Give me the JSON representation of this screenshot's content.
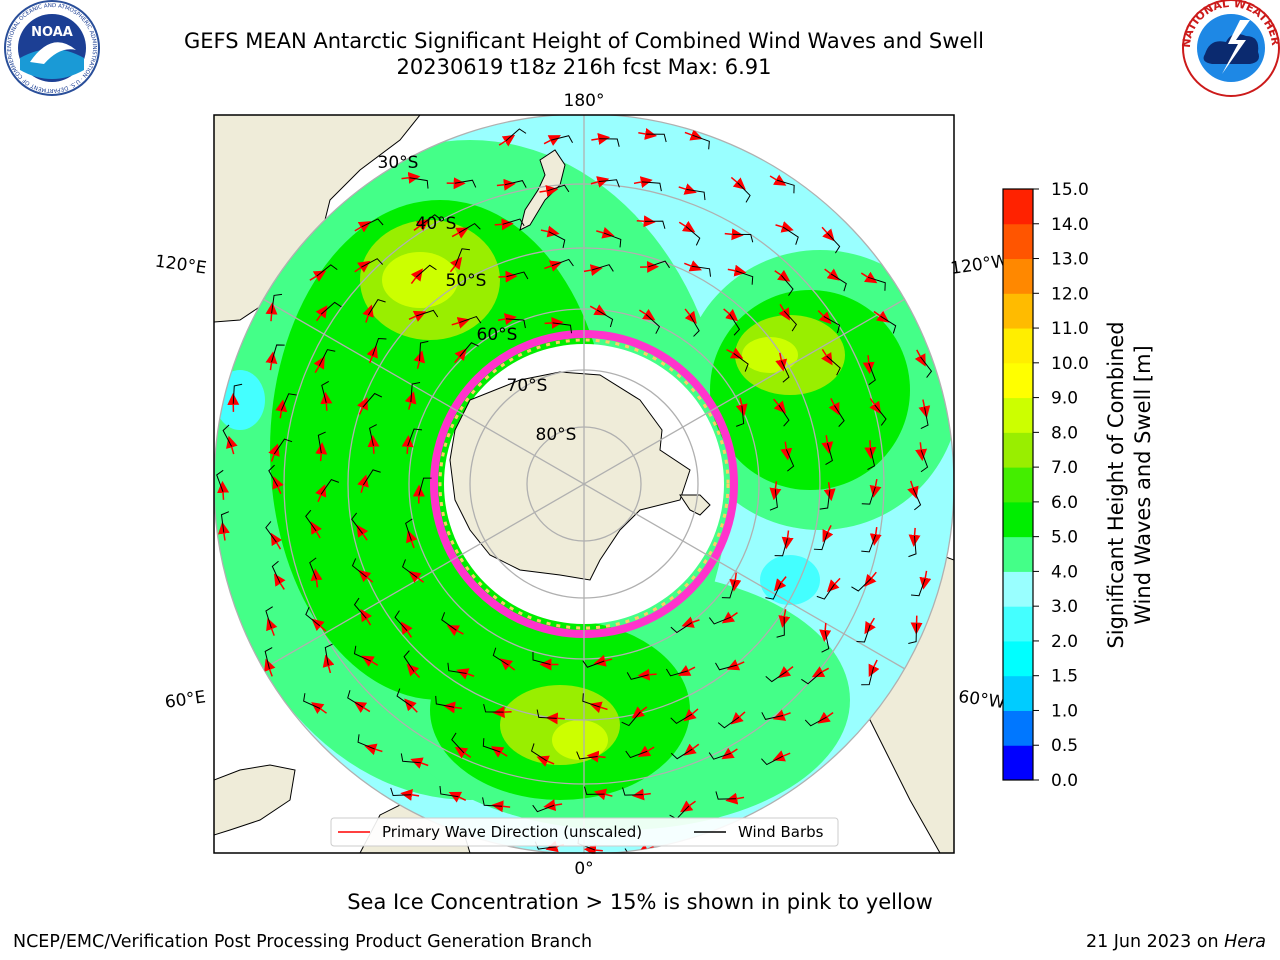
{
  "header": {
    "title_line1": "GEFS MEAN Antarctic Significant Height of Combined Wind Waves and Swell",
    "title_line2": "20230619 t18z 216h fcst   Max: 6.91"
  },
  "logos": {
    "left": {
      "name": "noaa-logo",
      "text": "NOAA",
      "ring_text": "NATIONAL OCEANIC AND ATMOSPHERIC ADMINISTRATION · U.S. DEPARTMENT OF COMMERCE"
    },
    "right": {
      "name": "nws-logo",
      "ring_text": "NATIONAL WEATHER SERVICE"
    }
  },
  "map": {
    "projection": "south-polar-stereographic",
    "longitude_labels": {
      "top": "180°",
      "bottom": "0°",
      "upper_left": "120°E",
      "upper_right": "120°W",
      "lower_left": "60°E",
      "lower_right": "60°W"
    },
    "latitude_labels": [
      "30°S",
      "40°S",
      "50°S",
      "60°S",
      "70°S",
      "80°S"
    ],
    "colors": {
      "land": "#efecd9",
      "ice_shelf": "#ffffff",
      "sea_ice_edge": "#ff33cc",
      "grid": "#b0b0b0",
      "wave_arrow": "#ff0000",
      "wind_barb": "#000000"
    },
    "legend": {
      "arrow_label": "Primary Wave Direction (unscaled)",
      "barb_label": "Wind Barbs",
      "placement": "bottom-center"
    }
  },
  "colorbar": {
    "label_line1": "Significant Height of Combined",
    "label_line2": "Wind Waves and Swell [m]",
    "ticks": [
      "0.0",
      "0.5",
      "1.0",
      "1.5",
      "2.0",
      "3.0",
      "4.0",
      "5.0",
      "6.0",
      "7.0",
      "8.0",
      "9.0",
      "10.0",
      "11.0",
      "12.0",
      "13.0",
      "14.0",
      "15.0"
    ],
    "colors": [
      "#0000ff",
      "#0077ff",
      "#00ccff",
      "#00ffff",
      "#44ffff",
      "#99ffff",
      "#44ff88",
      "#00ee00",
      "#44ee00",
      "#99ee00",
      "#ccff00",
      "#ffff00",
      "#ffee00",
      "#ffbb00",
      "#ff8800",
      "#ff5500",
      "#ff2200",
      "#ff0000"
    ]
  },
  "caption": "Sea Ice Concentration > 15% is shown in pink to yellow",
  "footer": {
    "left": "NCEP/EMC/Verification Post Processing Product Generation Branch",
    "right_prefix": "21 Jun 2023 on ",
    "right_host": "Hera"
  }
}
